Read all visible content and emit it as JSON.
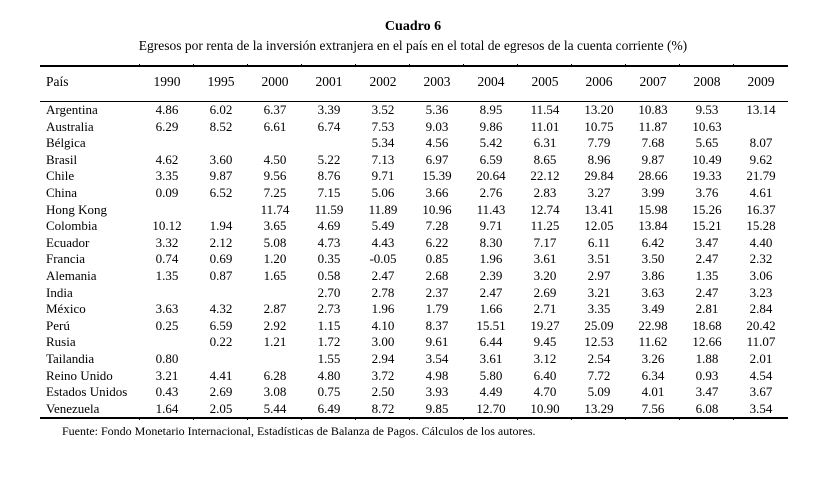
{
  "title": "Cuadro 6",
  "subtitle": "Egresos por renta de la inversión extranjera en el país en el total de egresos de la cuenta corriente (%)",
  "source_note": "Fuente: Fondo Monetario Internacional, Estadísticas de Balanza de Pagos. Cálculos de los autores.",
  "colors": {
    "text": "#000000",
    "background": "#ffffff",
    "rule": "#000000"
  },
  "chart_data": {
    "type": "table",
    "columns": [
      "País",
      "1990",
      "1995",
      "2000",
      "2001",
      "2002",
      "2003",
      "2004",
      "2005",
      "2006",
      "2007",
      "2008",
      "2009"
    ],
    "rows": [
      {
        "pais": "Argentina",
        "values": [
          "4.86",
          "6.02",
          "6.37",
          "3.39",
          "3.52",
          "5.36",
          "8.95",
          "11.54",
          "13.20",
          "10.83",
          "9.53",
          "13.14"
        ]
      },
      {
        "pais": "Australia",
        "values": [
          "6.29",
          "8.52",
          "6.61",
          "6.74",
          "7.53",
          "9.03",
          "9.86",
          "11.01",
          "10.75",
          "11.87",
          "10.63",
          ""
        ]
      },
      {
        "pais": "Bélgica",
        "values": [
          "",
          "",
          "",
          "",
          "5.34",
          "4.56",
          "5.42",
          "6.31",
          "7.79",
          "7.68",
          "5.65",
          "8.07"
        ]
      },
      {
        "pais": "Brasil",
        "values": [
          "4.62",
          "3.60",
          "4.50",
          "5.22",
          "7.13",
          "6.97",
          "6.59",
          "8.65",
          "8.96",
          "9.87",
          "10.49",
          "9.62"
        ]
      },
      {
        "pais": "Chile",
        "values": [
          "3.35",
          "9.87",
          "9.56",
          "8.76",
          "9.71",
          "15.39",
          "20.64",
          "22.12",
          "29.84",
          "28.66",
          "19.33",
          "21.79"
        ]
      },
      {
        "pais": "China",
        "values": [
          "0.09",
          "6.52",
          "7.25",
          "7.15",
          "5.06",
          "3.66",
          "2.76",
          "2.83",
          "3.27",
          "3.99",
          "3.76",
          "4.61"
        ]
      },
      {
        "pais": "Hong Kong",
        "values": [
          "",
          "",
          "11.74",
          "11.59",
          "11.89",
          "10.96",
          "11.43",
          "12.74",
          "13.41",
          "15.98",
          "15.26",
          "16.37"
        ]
      },
      {
        "pais": "Colombia",
        "values": [
          "10.12",
          "1.94",
          "3.65",
          "4.69",
          "5.49",
          "7.28",
          "9.71",
          "11.25",
          "12.05",
          "13.84",
          "15.21",
          "15.28"
        ]
      },
      {
        "pais": "Ecuador",
        "values": [
          "3.32",
          "2.12",
          "5.08",
          "4.73",
          "4.43",
          "6.22",
          "8.30",
          "7.17",
          "6.11",
          "6.42",
          "3.47",
          "4.40"
        ]
      },
      {
        "pais": "Francia",
        "values": [
          "0.74",
          "0.69",
          "1.20",
          "0.35",
          "-0.05",
          "0.85",
          "1.96",
          "3.61",
          "3.51",
          "3.50",
          "2.47",
          "2.32"
        ]
      },
      {
        "pais": "Alemania",
        "values": [
          "1.35",
          "0.87",
          "1.65",
          "0.58",
          "2.47",
          "2.68",
          "2.39",
          "3.20",
          "2.97",
          "3.86",
          "1.35",
          "3.06"
        ]
      },
      {
        "pais": "India",
        "values": [
          "",
          "",
          "",
          "2.70",
          "2.78",
          "2.37",
          "2.47",
          "2.69",
          "3.21",
          "3.63",
          "2.47",
          "3.23"
        ]
      },
      {
        "pais": "México",
        "values": [
          "3.63",
          "4.32",
          "2.87",
          "2.73",
          "1.96",
          "1.79",
          "1.66",
          "2.71",
          "3.35",
          "3.49",
          "2.81",
          "2.84"
        ]
      },
      {
        "pais": "Perú",
        "values": [
          "0.25",
          "6.59",
          "2.92",
          "1.15",
          "4.10",
          "8.37",
          "15.51",
          "19.27",
          "25.09",
          "22.98",
          "18.68",
          "20.42"
        ]
      },
      {
        "pais": "Rusia",
        "values": [
          "",
          "0.22",
          "1.21",
          "1.72",
          "3.00",
          "9.61",
          "6.44",
          "9.45",
          "12.53",
          "11.62",
          "12.66",
          "11.07"
        ]
      },
      {
        "pais": "Tailandia",
        "values": [
          "0.80",
          "",
          "",
          "1.55",
          "2.94",
          "3.54",
          "3.61",
          "3.12",
          "2.54",
          "3.26",
          "1.88",
          "2.01"
        ]
      },
      {
        "pais": "Reino Unido",
        "values": [
          "3.21",
          "4.41",
          "6.28",
          "4.80",
          "3.72",
          "4.98",
          "5.80",
          "6.40",
          "7.72",
          "6.34",
          "0.93",
          "4.54"
        ]
      },
      {
        "pais": "Estados Unidos",
        "values": [
          "0.43",
          "2.69",
          "3.08",
          "0.75",
          "2.50",
          "3.93",
          "4.49",
          "4.70",
          "5.09",
          "4.01",
          "3.47",
          "3.67"
        ]
      },
      {
        "pais": "Venezuela",
        "values": [
          "1.64",
          "2.05",
          "5.44",
          "6.49",
          "8.72",
          "9.85",
          "12.70",
          "10.90",
          "13.29",
          "7.56",
          "6.08",
          "3.54"
        ]
      }
    ]
  }
}
